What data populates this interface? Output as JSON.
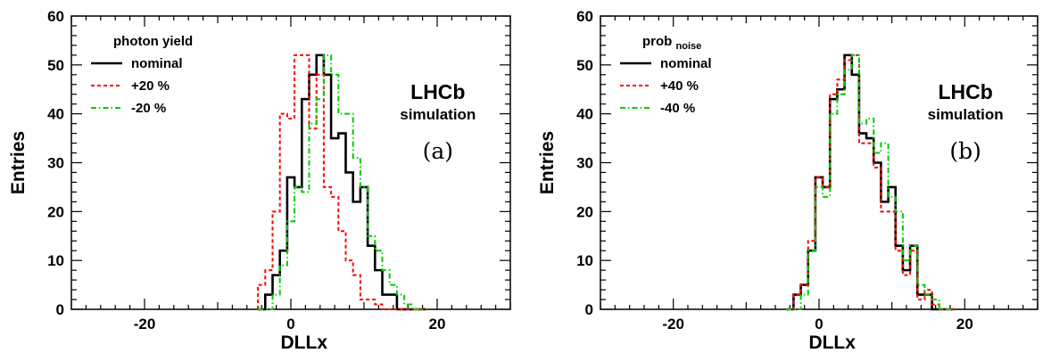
{
  "chart_data": [
    {
      "type": "line",
      "step": true,
      "bin_width": 1,
      "x": [
        -4,
        -3,
        -2,
        -1,
        0,
        1,
        2,
        3,
        4,
        5,
        6,
        7,
        8,
        9,
        10,
        11,
        12,
        13,
        14,
        15,
        16,
        17,
        18
      ],
      "series": [
        {
          "name": "nominal",
          "style": "solid",
          "color": "#000000",
          "values": [
            0,
            3,
            7,
            12,
            27,
            25,
            43,
            48,
            52,
            48,
            35,
            36,
            28,
            22,
            25,
            13,
            8,
            3,
            3,
            0,
            0,
            0,
            0
          ]
        },
        {
          "name": "+20 %",
          "style": "dashed",
          "color": "#ff0000",
          "values": [
            5,
            8,
            20,
            40,
            39,
            52,
            52,
            37,
            48,
            25,
            23,
            16,
            10,
            7,
            2,
            2,
            1,
            0,
            0,
            0,
            0,
            0,
            0
          ]
        },
        {
          "name": "-20 %",
          "style": "dashdot",
          "color": "#00cc00",
          "values": [
            0,
            0,
            3,
            9,
            18,
            25,
            24,
            38,
            43,
            52,
            48,
            40,
            40,
            31,
            25,
            15,
            12,
            8,
            5,
            3,
            1,
            0,
            0
          ]
        }
      ],
      "xlabel": "DLLx",
      "ylabel": "Entries",
      "xlim": [
        -30,
        30
      ],
      "ylim": [
        0,
        60
      ],
      "xticks": [
        -20,
        0,
        20
      ],
      "xtick_labels": [
        "-20",
        "0",
        "20"
      ],
      "yticks": [
        0,
        10,
        20,
        30,
        40,
        50,
        60
      ],
      "ytick_labels": [
        "0",
        "10",
        "20",
        "30",
        "40",
        "50",
        "60"
      ],
      "legend_title": "photon yield",
      "legend_title_sub": "",
      "legend_placement": "top-left",
      "experiment_label": "LHCb",
      "sublabel": "simulation",
      "panel_label": "(a)",
      "grid": false
    },
    {
      "type": "line",
      "step": true,
      "bin_width": 1,
      "x": [
        -4,
        -3,
        -2,
        -1,
        0,
        1,
        2,
        3,
        4,
        5,
        6,
        7,
        8,
        9,
        10,
        11,
        12,
        13,
        14,
        15,
        16,
        17,
        18
      ],
      "series": [
        {
          "name": "nominal",
          "style": "solid",
          "color": "#000000",
          "values": [
            0,
            3,
            5,
            12,
            27,
            25,
            43,
            45,
            52,
            48,
            36,
            35,
            30,
            22,
            25,
            13,
            8,
            13,
            3,
            3,
            0,
            0,
            0
          ]
        },
        {
          "name": "+40 %",
          "style": "dashed",
          "color": "#ff0000",
          "values": [
            0,
            3,
            5,
            14,
            27,
            25,
            44,
            47,
            51,
            52,
            34,
            34,
            29,
            20,
            20,
            12,
            7,
            12,
            2,
            4,
            1,
            0,
            0
          ]
        },
        {
          "name": "-40 %",
          "style": "dashdot",
          "color": "#00cc00",
          "values": [
            0,
            0,
            3,
            12,
            25,
            23,
            40,
            44,
            49,
            52,
            38,
            39,
            32,
            34,
            23,
            20,
            10,
            13,
            5,
            3,
            2,
            0,
            0
          ]
        }
      ],
      "xlabel": "DLLx",
      "ylabel": "Entries",
      "xlim": [
        -30,
        30
      ],
      "ylim": [
        0,
        60
      ],
      "xticks": [
        -20,
        0,
        20
      ],
      "xtick_labels": [
        "-20",
        "0",
        "20"
      ],
      "yticks": [
        0,
        10,
        20,
        30,
        40,
        50,
        60
      ],
      "ytick_labels": [
        "0",
        "10",
        "20",
        "30",
        "40",
        "50",
        "60"
      ],
      "legend_title": "prob",
      "legend_title_sub": "noise",
      "legend_placement": "top-left",
      "experiment_label": "LHCb",
      "sublabel": "simulation",
      "panel_label": "(b)",
      "grid": false
    }
  ]
}
